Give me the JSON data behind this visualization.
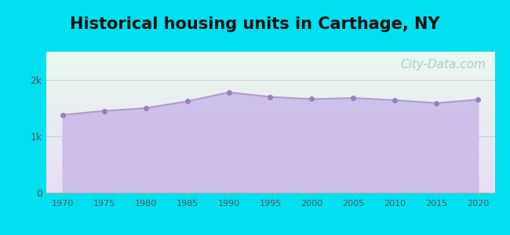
{
  "title": "Historical housing units in Carthage, NY",
  "title_fontsize": 15,
  "years": [
    1970,
    1975,
    1980,
    1985,
    1990,
    1995,
    2000,
    2005,
    2010,
    2015,
    2020
  ],
  "values": [
    1380,
    1450,
    1500,
    1620,
    1780,
    1700,
    1660,
    1680,
    1640,
    1590,
    1650
  ],
  "ylim": [
    0,
    2500
  ],
  "yticks": [
    0,
    1000,
    2000
  ],
  "ytick_labels": [
    "0",
    "1k",
    "2k"
  ],
  "line_color": "#b39dcc",
  "fill_color": "#c9b8e8",
  "fill_alpha": 0.85,
  "marker_color": "#9b7fc0",
  "marker_size": 5,
  "bg_outer": "#00e0f0",
  "bg_plot_top": "#eaf8ee",
  "bg_plot_bottom": "#e8dff5",
  "watermark": "City-Data.com",
  "watermark_color": "#a0c8c8",
  "watermark_fontsize": 11
}
